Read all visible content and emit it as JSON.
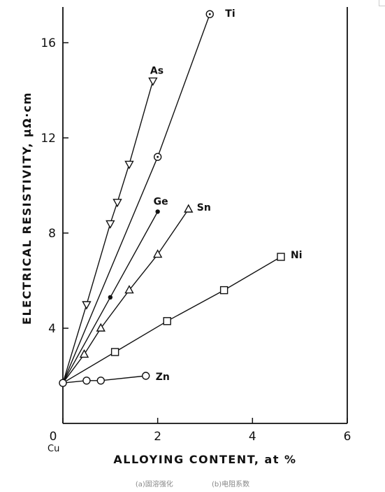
{
  "chart_data": {
    "type": "line",
    "xlabel": "ALLOYING CONTENT, at %",
    "ylabel": "ELECTRICAL RESISTIVITY, μΩ·cm",
    "xlim": [
      0,
      6
    ],
    "ylim": [
      0,
      17.5
    ],
    "x_ticks": [
      "0",
      "2",
      "4",
      "6"
    ],
    "y_ticks": [
      "4",
      "8",
      "12",
      "16"
    ],
    "origin_label": "Cu",
    "grid": false,
    "legend": "labels at line ends",
    "series": [
      {
        "name": "Ti",
        "marker": "circle-dot",
        "x": [
          0,
          2.0,
          3.1
        ],
        "y": [
          1.7,
          11.2,
          17.2
        ]
      },
      {
        "name": "As",
        "marker": "triangle-down",
        "x": [
          0,
          0.5,
          1.0,
          1.15,
          1.4,
          1.9
        ],
        "y": [
          1.7,
          5.0,
          8.4,
          9.3,
          10.9,
          14.4
        ]
      },
      {
        "name": "Ge",
        "marker": "filled-dot",
        "x": [
          0,
          1.0,
          2.0
        ],
        "y": [
          1.7,
          5.3,
          8.9
        ]
      },
      {
        "name": "Sn",
        "marker": "triangle-up",
        "x": [
          0,
          0.45,
          0.8,
          1.4,
          2.0,
          2.65
        ],
        "y": [
          1.7,
          2.9,
          4.0,
          5.6,
          7.1,
          9.0
        ]
      },
      {
        "name": "Ni",
        "marker": "square",
        "x": [
          0,
          1.1,
          2.2,
          3.4,
          4.6
        ],
        "y": [
          1.7,
          3.0,
          4.3,
          5.6,
          7.0
        ]
      },
      {
        "name": "Zn",
        "marker": "circle",
        "x": [
          0,
          0.5,
          0.8,
          1.75
        ],
        "y": [
          1.7,
          1.8,
          1.8,
          2.0
        ]
      }
    ]
  },
  "captions": [
    "(a)固溶强化",
    "(b)电阻系数"
  ]
}
